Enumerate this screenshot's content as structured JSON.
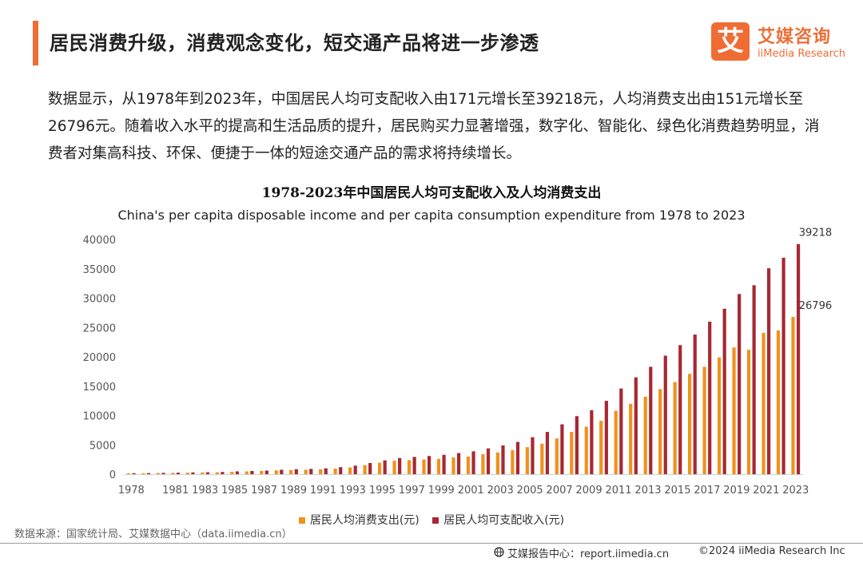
{
  "header": {
    "title": "居民消费升级，消费观念变化，短交通产品将进一步渗透"
  },
  "logo": {
    "mark": "艾",
    "cn": "艾媒咨询",
    "en": "iiMedia Research"
  },
  "body_text": "数据显示，从1978年到2023年，中国居民人均可支配收入由171元增长至39218元，人均消费支出由151元增长至26796元。随着收入水平的提高和生活品质的提升，居民购买力显著增强，数字化、智能化、绿色化消费趋势明显，消费者对集高科技、环保、便捷于一体的短途交通产品的需求将持续增长。",
  "footer": {
    "source": "数据来源：国家统计局、艾媒数据中心（data.iimedia.cn）",
    "site": "艾媒报告中心：report.iimedia.cn",
    "copyright": "©2024  iiMedia Research  Inc"
  },
  "colors": {
    "accent": "#ef6d35",
    "consumption": "#f0921d",
    "income": "#a62833",
    "axis_text": "#555555"
  },
  "chart_data": {
    "type": "bar",
    "title": "1978-2023年中国居民人均可支配收入及人均消费支出",
    "subtitle": "China's per capita disposable income and per capita consumption expenditure from 1978 to 2023",
    "ylim": [
      0,
      40000
    ],
    "yticks": [
      0,
      5000,
      10000,
      15000,
      20000,
      25000,
      30000,
      35000,
      40000
    ],
    "legend_position": "bottom",
    "grid": false,
    "categories": [
      1978,
      1979,
      1980,
      1981,
      1982,
      1983,
      1984,
      1985,
      1986,
      1987,
      1988,
      1989,
      1990,
      1991,
      1992,
      1993,
      1994,
      1995,
      1996,
      1997,
      1998,
      1999,
      2000,
      2001,
      2002,
      2003,
      2004,
      2005,
      2006,
      2007,
      2008,
      2009,
      2010,
      2011,
      2012,
      2013,
      2014,
      2015,
      2016,
      2017,
      2018,
      2019,
      2020,
      2021,
      2022,
      2023
    ],
    "xtick_labels": [
      "1978",
      "1981",
      "1983",
      "1985",
      "1987",
      "1989",
      "1991",
      "1993",
      "1995",
      "1997",
      "1999",
      "2001",
      "2003",
      "2005",
      "2007",
      "2009",
      "2011",
      "2013",
      "2015",
      "2017",
      "2019",
      "2021",
      "2023"
    ],
    "series": [
      {
        "name": "居民人均消费支出(元)",
        "color": "#f0921d",
        "values": [
          151,
          170,
          200,
          230,
          260,
          290,
          320,
          410,
          470,
          540,
          650,
          700,
          760,
          830,
          950,
          1150,
          1550,
          1950,
          2300,
          2400,
          2500,
          2600,
          2850,
          3000,
          3400,
          3700,
          4100,
          4600,
          5200,
          6100,
          7200,
          8100,
          9100,
          10800,
          12000,
          13200,
          14500,
          15700,
          17100,
          18300,
          19900,
          21600,
          21200,
          24100,
          24500,
          26796
        ]
      },
      {
        "name": "居民人均可支配收入(元)",
        "color": "#a62833",
        "values": [
          171,
          190,
          230,
          260,
          300,
          330,
          380,
          480,
          550,
          620,
          760,
          850,
          900,
          1000,
          1200,
          1450,
          1900,
          2350,
          2750,
          2950,
          3100,
          3300,
          3600,
          3900,
          4400,
          4900,
          5500,
          6300,
          7200,
          8500,
          9900,
          10900,
          12500,
          14600,
          16500,
          18300,
          20200,
          22000,
          23800,
          26000,
          28200,
          30700,
          32200,
          35100,
          36900,
          39218
        ]
      }
    ],
    "data_labels": [
      {
        "series": "居民人均可支配收入(元)",
        "category": 2023,
        "text": "39218"
      },
      {
        "series": "居民人均消费支出(元)",
        "category": 2023,
        "text": "26796"
      }
    ]
  }
}
